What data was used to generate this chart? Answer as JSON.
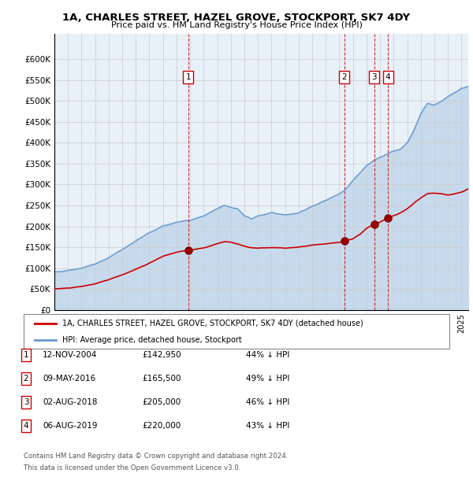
{
  "title": "1A, CHARLES STREET, HAZEL GROVE, STOCKPORT, SK7 4DY",
  "subtitle": "Price paid vs. HM Land Registry's House Price Index (HPI)",
  "ylabel_ticks": [
    "£0",
    "£50K",
    "£100K",
    "£150K",
    "£200K",
    "£250K",
    "£300K",
    "£350K",
    "£400K",
    "£450K",
    "£500K",
    "£550K",
    "£600K"
  ],
  "ylim": [
    0,
    660000
  ],
  "xlim_start": 1995.0,
  "xlim_end": 2025.5,
  "plot_bg": "#e8f0f8",
  "grid_color": "#cccccc",
  "sale_dates": [
    2004.865,
    2016.356,
    2018.583,
    2019.583
  ],
  "sale_prices": [
    142950,
    165500,
    205000,
    220000
  ],
  "sale_labels": [
    "1",
    "2",
    "3",
    "4"
  ],
  "hpi_red_line_label": "1A, CHARLES STREET, HAZEL GROVE, STOCKPORT, SK7 4DY (detached house)",
  "hpi_blue_line_label": "HPI: Average price, detached house, Stockport",
  "table_data": [
    [
      "1",
      "12-NOV-2004",
      "£142,950",
      "44% ↓ HPI"
    ],
    [
      "2",
      "09-MAY-2016",
      "£165,500",
      "49% ↓ HPI"
    ],
    [
      "3",
      "02-AUG-2018",
      "£205,000",
      "46% ↓ HPI"
    ],
    [
      "4",
      "06-AUG-2019",
      "£220,000",
      "43% ↓ HPI"
    ]
  ],
  "footnote": "Contains HM Land Registry data © Crown copyright and database right 2024.\nThis data is licensed under the Open Government Licence v3.0.",
  "red_color": "#cc0000",
  "blue_color": "#6699cc",
  "marker_color": "#990000",
  "vline_color": "#cc0000",
  "box_color": "#cc0000"
}
